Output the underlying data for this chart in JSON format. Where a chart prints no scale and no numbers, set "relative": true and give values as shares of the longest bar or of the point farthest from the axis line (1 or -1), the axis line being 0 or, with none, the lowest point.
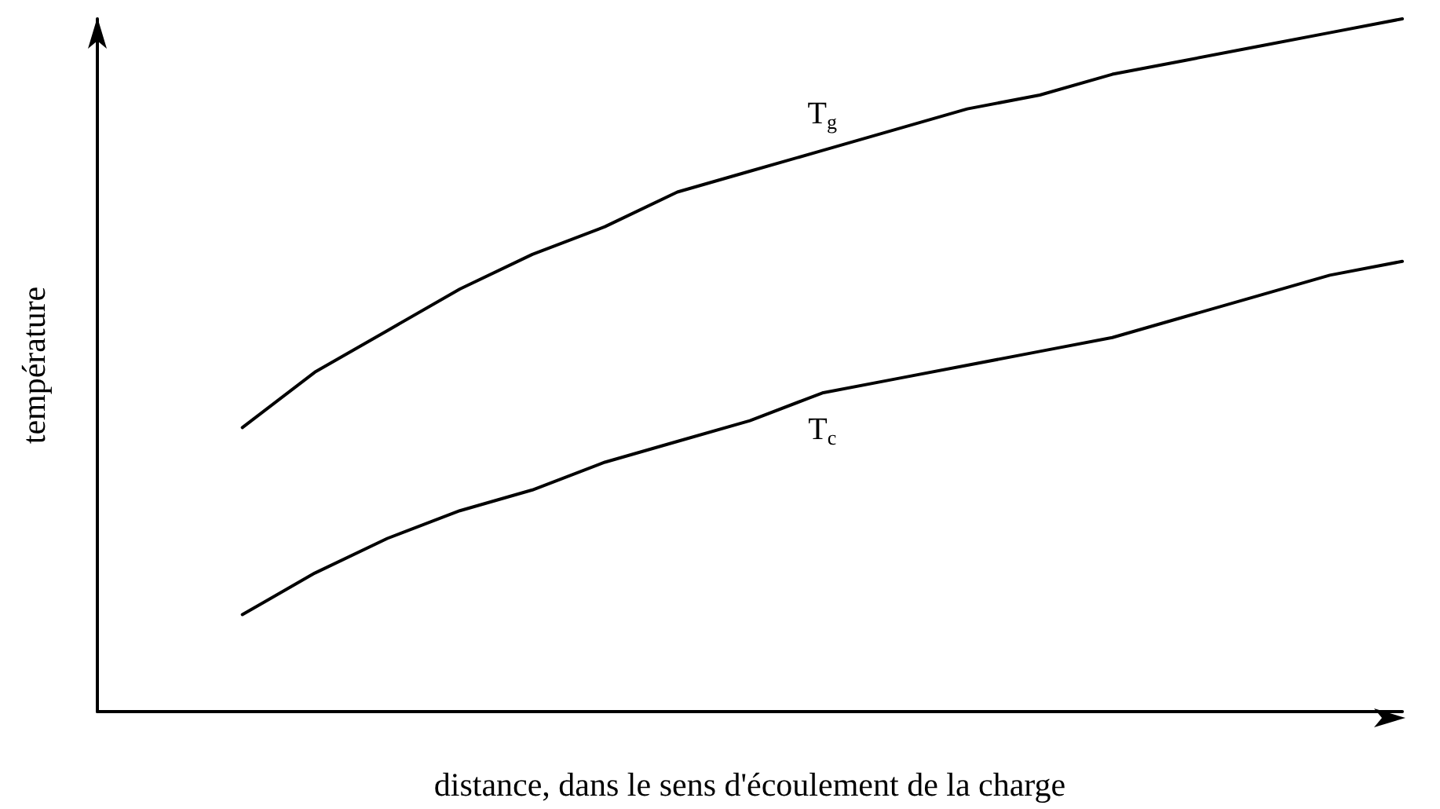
{
  "chart_data": {
    "type": "line",
    "relative": true,
    "xlabel": "distance, dans le sens d'écoulement de la charge",
    "ylabel": "température",
    "categories": [
      null,
      null,
      null,
      null,
      null,
      null,
      null,
      null,
      null,
      null,
      null,
      null,
      null,
      null,
      null,
      null,
      null,
      null,
      null
    ],
    "series": [
      {
        "name": "T$_{g}$",
        "color": "#000000",
        "values": [
          null,
          null,
          0.41,
          0.49,
          0.55,
          0.61,
          0.66,
          0.7,
          0.75,
          0.78,
          0.81,
          0.84,
          0.87,
          0.89,
          0.92,
          0.94,
          0.96,
          0.98,
          1
        ]
      },
      {
        "name": "T$_{c}$",
        "color": "#000000",
        "values": [
          null,
          null,
          0.14,
          0.2,
          0.25,
          0.29,
          0.32,
          0.36,
          0.39,
          0.42,
          0.46,
          0.48,
          0.5,
          0.52,
          0.54,
          0.57,
          0.6,
          0.63,
          0.65
        ]
      }
    ],
    "marker": "none",
    "line_style": "solid",
    "grid": false,
    "legend": false
  }
}
